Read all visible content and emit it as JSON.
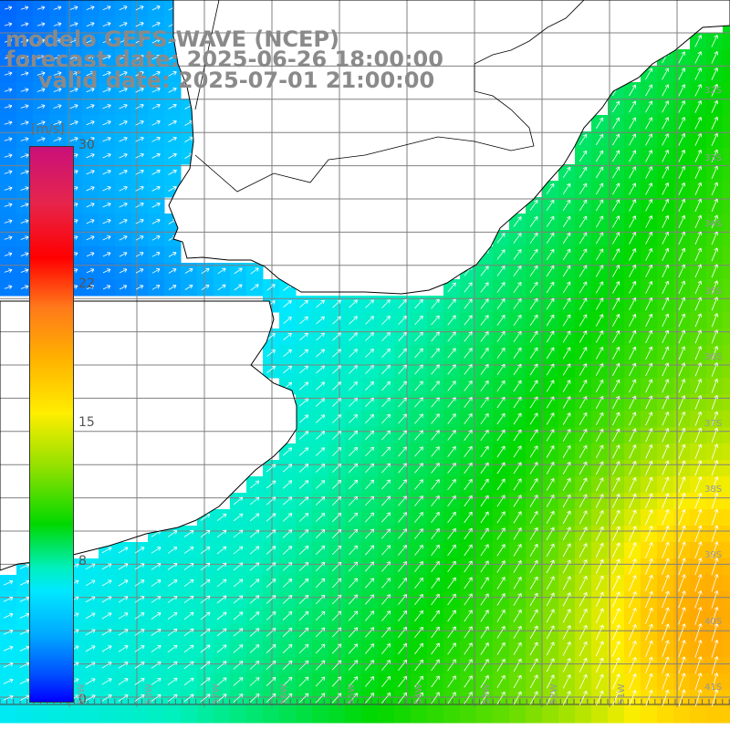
{
  "title": {
    "line1": "modelo GEFS-WAVE (NCEP)",
    "line2": "forecast date: 2025-06-26 18:00:00",
    "line3": "valid date: 2025-07-01 21:00:00"
  },
  "colorbar": {
    "unit": "[m/s]",
    "ticks": [
      "30",
      "22",
      "15",
      "8",
      "0"
    ],
    "tick_values": [
      30,
      22,
      15,
      8,
      0
    ],
    "min": 0,
    "max": 30,
    "colors": [
      "#0000ff",
      "#0050ff",
      "#00a8ff",
      "#00e8ff",
      "#00f0c0",
      "#00d800",
      "#8ee000",
      "#ffee00",
      "#ffb000",
      "#ff7a1a",
      "#ff0000",
      "#e6254c",
      "#c8107a"
    ]
  },
  "latitude_labels": [
    "32S",
    "33S",
    "34S",
    "35S",
    "36S",
    "37S",
    "38S",
    "39S",
    "40S",
    "41S"
  ],
  "longitude_labels": [
    "59W",
    "58W",
    "57W",
    "56W",
    "55W",
    "54W",
    "53W",
    "52W",
    "51W"
  ],
  "colors": {
    "land": "#ffffff",
    "coast": "#000000",
    "grid": "#808080",
    "title_text": "#8a8a8a",
    "arrow": "#ffffff"
  }
}
